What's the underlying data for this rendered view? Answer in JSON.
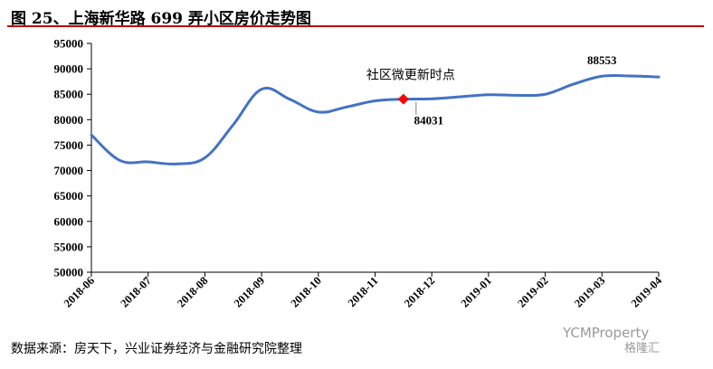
{
  "title": "图 25、上海新华路 699 弄小区房价走势图",
  "source": "数据来源：房天下，兴业证券经济与金融研究院整理",
  "watermark": {
    "line1": "YCMProperty",
    "line2": "格隆汇"
  },
  "colors": {
    "line": "#4472c4",
    "marker": "#ff0000",
    "title_rule": "#c00000"
  },
  "chart_data": {
    "type": "line",
    "categories": [
      "2018-06",
      "2018-07",
      "2018-08",
      "2018-09",
      "2018-10",
      "2018-11",
      "2018-12",
      "2019-01",
      "2019-02",
      "2019-03",
      "2019-04"
    ],
    "x": [
      0,
      0.5,
      1,
      1.5,
      2,
      2.5,
      3,
      3.5,
      4,
      4.5,
      5,
      5.5,
      6,
      6.5,
      7,
      7.5,
      8,
      8.5,
      9,
      9.5,
      10
    ],
    "values": [
      77000,
      72000,
      71700,
      71300,
      72500,
      79000,
      86000,
      84000,
      81500,
      82500,
      83700,
      84031,
      84100,
      84500,
      84900,
      84800,
      85000,
      87000,
      88553,
      88600,
      88400
    ],
    "ylim": [
      50000,
      95000
    ],
    "yticks": [
      50000,
      55000,
      60000,
      65000,
      70000,
      75000,
      80000,
      85000,
      90000,
      95000
    ],
    "grid": false,
    "annotations": [
      {
        "label": "社区微更新时点",
        "value": 84031,
        "value_label": "84031",
        "x": 5.5
      },
      {
        "label": "",
        "value": 88553,
        "value_label": "88553",
        "x": 9.0
      }
    ]
  }
}
